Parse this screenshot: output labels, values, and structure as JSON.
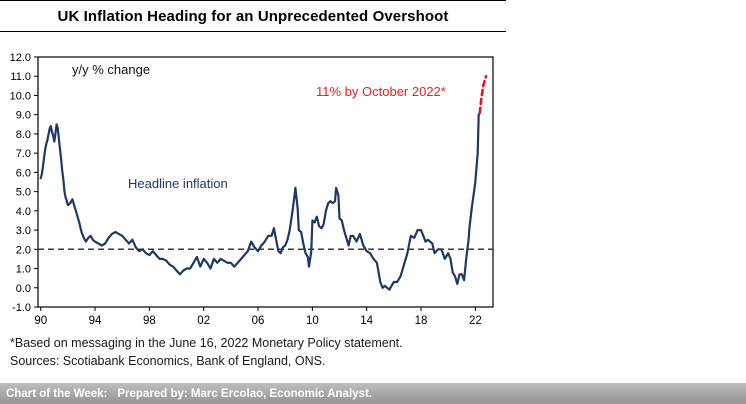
{
  "header": {
    "title": "UK Inflation Heading for an Unprecedented Overshoot"
  },
  "chart_data": {
    "type": "line",
    "title": "UK Inflation Heading for an Unprecedented Overshoot",
    "xlabel": "",
    "ylabel": "y/y % change",
    "xlim": [
      1989.8,
      2023.3
    ],
    "ylim": [
      -1.0,
      12.0
    ],
    "grid": false,
    "legend_position": "none",
    "annotations": {
      "units": "y/y % change",
      "series_label": "Headline inflation",
      "forecast_label": "11% by October 2022*"
    },
    "colors": {
      "line": "#1F3864",
      "forecast": "#E8112D",
      "forecast_text": "#ED1C24",
      "target": "#3A3A3A"
    },
    "target_line": {
      "value": 2.0,
      "style": "dashed",
      "color": "#3A3A3A"
    },
    "y_ticks": [
      {
        "value": 12,
        "label": "12.0"
      },
      {
        "value": 11,
        "label": "11.0"
      },
      {
        "value": 10,
        "label": "10.0"
      },
      {
        "value": 9,
        "label": "9.0"
      },
      {
        "value": 8,
        "label": "8.0"
      },
      {
        "value": 7,
        "label": "7.0"
      },
      {
        "value": 6,
        "label": "6.0"
      },
      {
        "value": 5,
        "label": "5.0"
      },
      {
        "value": 4,
        "label": "4.0"
      },
      {
        "value": 3,
        "label": "3.0"
      },
      {
        "value": 2,
        "label": "2.0"
      },
      {
        "value": 1,
        "label": "1.0"
      },
      {
        "value": 0,
        "label": "0.0"
      },
      {
        "value": -1,
        "label": "-1.0"
      }
    ],
    "x_ticks": [
      {
        "year": 1990,
        "label": "90"
      },
      {
        "year": 1994,
        "label": "94"
      },
      {
        "year": 1998,
        "label": "98"
      },
      {
        "year": 2002,
        "label": "02"
      },
      {
        "year": 2006,
        "label": "06"
      },
      {
        "year": 2010,
        "label": "10"
      },
      {
        "year": 2014,
        "label": "14"
      },
      {
        "year": 2018,
        "label": "18"
      },
      {
        "year": 2022,
        "label": "22"
      }
    ],
    "series": [
      {
        "name": "Headline inflation",
        "color": "#1F3864",
        "style": "solid",
        "width": 2.2,
        "points": [
          [
            1990.0,
            5.7
          ],
          [
            1990.08,
            5.9
          ],
          [
            1990.17,
            6.3
          ],
          [
            1990.25,
            6.8
          ],
          [
            1990.33,
            7.2
          ],
          [
            1990.42,
            7.5
          ],
          [
            1990.5,
            7.7
          ],
          [
            1990.58,
            8.0
          ],
          [
            1990.67,
            8.3
          ],
          [
            1990.75,
            8.4
          ],
          [
            1990.83,
            8.1
          ],
          [
            1990.92,
            7.9
          ],
          [
            1991.0,
            7.6
          ],
          [
            1991.08,
            8.0
          ],
          [
            1991.17,
            8.5
          ],
          [
            1991.25,
            8.3
          ],
          [
            1991.33,
            7.8
          ],
          [
            1991.42,
            7.2
          ],
          [
            1991.5,
            6.7
          ],
          [
            1991.58,
            6.1
          ],
          [
            1991.67,
            5.6
          ],
          [
            1991.75,
            5.0
          ],
          [
            1991.83,
            4.7
          ],
          [
            1991.92,
            4.5
          ],
          [
            1992.0,
            4.3
          ],
          [
            1992.17,
            4.4
          ],
          [
            1992.33,
            4.6
          ],
          [
            1992.5,
            4.2
          ],
          [
            1992.67,
            3.8
          ],
          [
            1992.83,
            3.4
          ],
          [
            1993.0,
            2.9
          ],
          [
            1993.17,
            2.6
          ],
          [
            1993.33,
            2.4
          ],
          [
            1993.5,
            2.6
          ],
          [
            1993.67,
            2.7
          ],
          [
            1993.83,
            2.5
          ],
          [
            1994.0,
            2.4
          ],
          [
            1994.25,
            2.3
          ],
          [
            1994.5,
            2.2
          ],
          [
            1994.75,
            2.3
          ],
          [
            1995.0,
            2.6
          ],
          [
            1995.25,
            2.8
          ],
          [
            1995.5,
            2.9
          ],
          [
            1995.75,
            2.8
          ],
          [
            1996.0,
            2.7
          ],
          [
            1996.25,
            2.5
          ],
          [
            1996.5,
            2.3
          ],
          [
            1996.75,
            2.5
          ],
          [
            1997.0,
            2.1
          ],
          [
            1997.25,
            1.9
          ],
          [
            1997.5,
            2.0
          ],
          [
            1997.75,
            1.8
          ],
          [
            1998.0,
            1.7
          ],
          [
            1998.25,
            1.9
          ],
          [
            1998.5,
            1.7
          ],
          [
            1998.75,
            1.5
          ],
          [
            1999.0,
            1.5
          ],
          [
            1999.25,
            1.4
          ],
          [
            1999.5,
            1.2
          ],
          [
            1999.75,
            1.1
          ],
          [
            2000.0,
            0.9
          ],
          [
            2000.25,
            0.7
          ],
          [
            2000.5,
            0.9
          ],
          [
            2000.75,
            1.0
          ],
          [
            2001.0,
            1.0
          ],
          [
            2001.25,
            1.3
          ],
          [
            2001.5,
            1.6
          ],
          [
            2001.75,
            1.1
          ],
          [
            2002.0,
            1.5
          ],
          [
            2002.25,
            1.3
          ],
          [
            2002.5,
            1.0
          ],
          [
            2002.75,
            1.5
          ],
          [
            2003.0,
            1.3
          ],
          [
            2003.25,
            1.5
          ],
          [
            2003.5,
            1.4
          ],
          [
            2003.75,
            1.3
          ],
          [
            2004.0,
            1.3
          ],
          [
            2004.25,
            1.1
          ],
          [
            2004.5,
            1.3
          ],
          [
            2004.75,
            1.5
          ],
          [
            2005.0,
            1.7
          ],
          [
            2005.25,
            1.9
          ],
          [
            2005.5,
            2.4
          ],
          [
            2005.75,
            2.1
          ],
          [
            2006.0,
            1.9
          ],
          [
            2006.25,
            2.2
          ],
          [
            2006.5,
            2.4
          ],
          [
            2006.75,
            2.7
          ],
          [
            2007.0,
            2.7
          ],
          [
            2007.17,
            3.1
          ],
          [
            2007.33,
            2.5
          ],
          [
            2007.5,
            1.9
          ],
          [
            2007.67,
            1.8
          ],
          [
            2007.83,
            2.1
          ],
          [
            2008.0,
            2.2
          ],
          [
            2008.17,
            2.5
          ],
          [
            2008.33,
            3.0
          ],
          [
            2008.5,
            3.8
          ],
          [
            2008.67,
            4.7
          ],
          [
            2008.75,
            5.2
          ],
          [
            2008.92,
            4.1
          ],
          [
            2009.0,
            3.0
          ],
          [
            2009.17,
            2.9
          ],
          [
            2009.33,
            2.3
          ],
          [
            2009.5,
            1.8
          ],
          [
            2009.67,
            1.6
          ],
          [
            2009.75,
            1.1
          ],
          [
            2009.92,
            1.9
          ],
          [
            2010.0,
            3.5
          ],
          [
            2010.17,
            3.4
          ],
          [
            2010.33,
            3.7
          ],
          [
            2010.5,
            3.2
          ],
          [
            2010.67,
            3.1
          ],
          [
            2010.83,
            3.3
          ],
          [
            2011.0,
            4.0
          ],
          [
            2011.17,
            4.4
          ],
          [
            2011.33,
            4.5
          ],
          [
            2011.5,
            4.4
          ],
          [
            2011.67,
            4.5
          ],
          [
            2011.75,
            5.2
          ],
          [
            2011.92,
            4.8
          ],
          [
            2012.0,
            3.6
          ],
          [
            2012.17,
            3.5
          ],
          [
            2012.33,
            3.0
          ],
          [
            2012.5,
            2.6
          ],
          [
            2012.67,
            2.2
          ],
          [
            2012.83,
            2.7
          ],
          [
            2013.0,
            2.7
          ],
          [
            2013.25,
            2.4
          ],
          [
            2013.5,
            2.8
          ],
          [
            2013.75,
            2.2
          ],
          [
            2014.0,
            1.9
          ],
          [
            2014.25,
            1.8
          ],
          [
            2014.5,
            1.5
          ],
          [
            2014.75,
            1.3
          ],
          [
            2015.0,
            0.3
          ],
          [
            2015.17,
            0.0
          ],
          [
            2015.33,
            0.1
          ],
          [
            2015.5,
            0.0
          ],
          [
            2015.67,
            -0.1
          ],
          [
            2015.83,
            0.1
          ],
          [
            2016.0,
            0.3
          ],
          [
            2016.25,
            0.3
          ],
          [
            2016.5,
            0.6
          ],
          [
            2016.75,
            1.2
          ],
          [
            2017.0,
            1.8
          ],
          [
            2017.25,
            2.7
          ],
          [
            2017.5,
            2.6
          ],
          [
            2017.75,
            3.0
          ],
          [
            2018.0,
            3.0
          ],
          [
            2018.17,
            2.7
          ],
          [
            2018.33,
            2.4
          ],
          [
            2018.5,
            2.5
          ],
          [
            2018.67,
            2.4
          ],
          [
            2018.83,
            2.3
          ],
          [
            2019.0,
            1.8
          ],
          [
            2019.25,
            2.0
          ],
          [
            2019.5,
            2.0
          ],
          [
            2019.75,
            1.5
          ],
          [
            2020.0,
            1.8
          ],
          [
            2020.17,
            1.5
          ],
          [
            2020.33,
            0.8
          ],
          [
            2020.5,
            0.6
          ],
          [
            2020.67,
            0.2
          ],
          [
            2020.83,
            0.7
          ],
          [
            2021.0,
            0.7
          ],
          [
            2021.17,
            0.4
          ],
          [
            2021.33,
            1.5
          ],
          [
            2021.5,
            2.5
          ],
          [
            2021.58,
            3.2
          ],
          [
            2021.75,
            4.2
          ],
          [
            2021.92,
            5.1
          ],
          [
            2022.0,
            5.5
          ],
          [
            2022.08,
            6.2
          ],
          [
            2022.17,
            7.0
          ],
          [
            2022.25,
            9.0
          ],
          [
            2022.33,
            9.1
          ]
        ]
      },
      {
        "name": "Forecast",
        "label": "11% by October 2022*",
        "color": "#E8112D",
        "style": "dashed",
        "width": 2.6,
        "points": [
          [
            2022.33,
            9.1
          ],
          [
            2022.45,
            9.9
          ],
          [
            2022.58,
            10.5
          ],
          [
            2022.7,
            10.8
          ],
          [
            2022.79,
            11.0
          ]
        ]
      }
    ]
  },
  "footnotes": {
    "line1": "*Based on messaging in the June 16, 2022 Monetary Policy statement.",
    "line2": "Sources: Scotiabank Economics, Bank of England, ONS."
  },
  "footer_bar": {
    "prefix": "Chart of the Week:",
    "text": "Prepared by: Marc Ercolao, Economic Analyst."
  }
}
